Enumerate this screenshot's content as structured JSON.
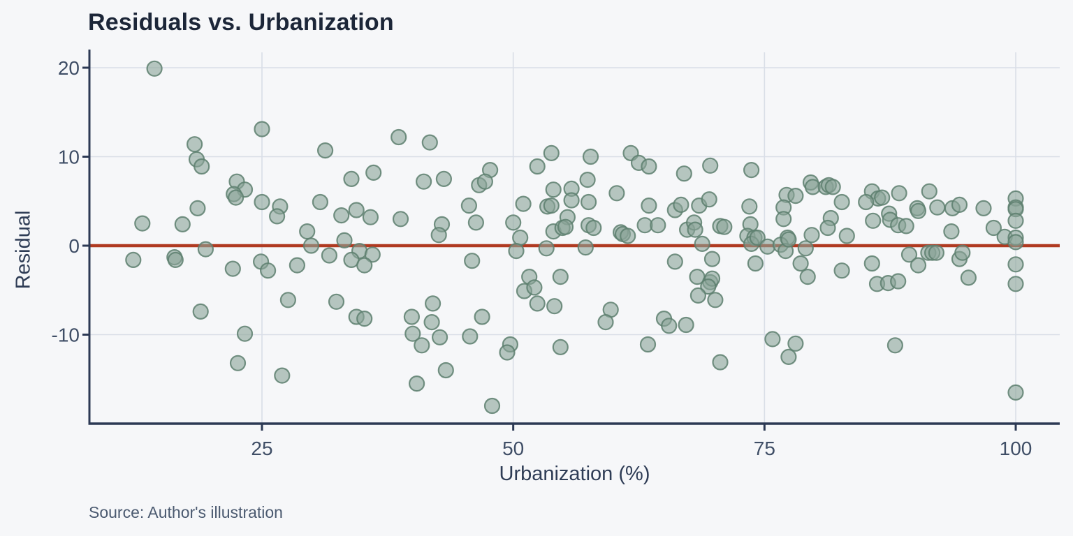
{
  "page": {
    "background": "#f6f7f9"
  },
  "header": {
    "title": "Residuals vs. Urbanization"
  },
  "footer": {
    "source": "Source: Author's illustration"
  },
  "colors": {
    "background": "#f6f7f9",
    "grid": "#d9dee7",
    "axis_line": "#2c3954",
    "tick_text": "#3f4e66",
    "title_text": "#1c2638",
    "axis_title_text": "#2e3c55",
    "source_text": "#4b5a70",
    "point_fill": "#8aa497",
    "point_stroke": "#5d7f6e",
    "zero_line": "#b03a21"
  },
  "chart_data": {
    "type": "scatter",
    "title": "Residuals vs. Urbanization",
    "xlabel": "Urbanization (%)",
    "ylabel": "Residual",
    "x_ticks": [
      25,
      50,
      75,
      100
    ],
    "y_ticks": [
      -10,
      0,
      10,
      20
    ],
    "xlim": [
      7.8,
      104.4
    ],
    "ylim": [
      -20,
      21.7
    ],
    "grid": true,
    "legend": false,
    "zero_line_y": 0,
    "points": [
      [
        14.3,
        19.9
      ],
      [
        18.3,
        11.4
      ],
      [
        18.5,
        9.7
      ],
      [
        19.0,
        8.9
      ],
      [
        22.5,
        7.2
      ],
      [
        23.3,
        6.3
      ],
      [
        22.2,
        5.8
      ],
      [
        22.4,
        5.4
      ],
      [
        18.6,
        4.2
      ],
      [
        13.1,
        2.5
      ],
      [
        17.1,
        2.4
      ],
      [
        19.4,
        -0.4
      ],
      [
        12.2,
        -1.6
      ],
      [
        16.3,
        -1.3
      ],
      [
        16.4,
        -1.6
      ],
      [
        22.1,
        -2.6
      ],
      [
        18.9,
        -7.4
      ],
      [
        23.3,
        -9.9
      ],
      [
        22.6,
        -13.2
      ],
      [
        25.0,
        13.1
      ],
      [
        38.6,
        12.2
      ],
      [
        31.3,
        10.7
      ],
      [
        36.1,
        8.2
      ],
      [
        33.9,
        7.5
      ],
      [
        25.0,
        4.9
      ],
      [
        30.8,
        4.9
      ],
      [
        26.8,
        4.4
      ],
      [
        26.5,
        3.3
      ],
      [
        34.4,
        4.0
      ],
      [
        32.9,
        3.4
      ],
      [
        35.8,
        3.2
      ],
      [
        38.8,
        3.0
      ],
      [
        29.5,
        1.6
      ],
      [
        33.2,
        0.6
      ],
      [
        29.9,
        0.0
      ],
      [
        34.7,
        -0.6
      ],
      [
        31.7,
        -1.1
      ],
      [
        36.0,
        -1.0
      ],
      [
        33.9,
        -1.6
      ],
      [
        24.9,
        -1.8
      ],
      [
        35.2,
        -2.2
      ],
      [
        25.6,
        -2.8
      ],
      [
        28.5,
        -2.2
      ],
      [
        27.6,
        -6.1
      ],
      [
        32.4,
        -6.3
      ],
      [
        34.4,
        -8.0
      ],
      [
        35.2,
        -8.2
      ],
      [
        39.9,
        -8.0
      ],
      [
        40.0,
        -9.9
      ],
      [
        27.0,
        -14.6
      ],
      [
        40.4,
        -15.5
      ],
      [
        41.7,
        11.6
      ],
      [
        53.8,
        10.4
      ],
      [
        47.7,
        8.5
      ],
      [
        52.4,
        8.9
      ],
      [
        41.1,
        7.2
      ],
      [
        43.1,
        7.5
      ],
      [
        46.6,
        6.8
      ],
      [
        47.2,
        7.2
      ],
      [
        54.0,
        6.3
      ],
      [
        55.8,
        6.4
      ],
      [
        45.6,
        4.5
      ],
      [
        51.0,
        4.7
      ],
      [
        53.4,
        4.4
      ],
      [
        53.8,
        4.5
      ],
      [
        55.8,
        5.1
      ],
      [
        42.9,
        2.4
      ],
      [
        46.3,
        2.6
      ],
      [
        50.0,
        2.6
      ],
      [
        55.4,
        3.2
      ],
      [
        54.0,
        1.6
      ],
      [
        54.9,
        2.0
      ],
      [
        55.2,
        2.1
      ],
      [
        42.6,
        1.2
      ],
      [
        50.7,
        0.9
      ],
      [
        50.3,
        -0.6
      ],
      [
        53.3,
        -0.3
      ],
      [
        45.9,
        -1.7
      ],
      [
        51.6,
        -3.5
      ],
      [
        54.7,
        -3.5
      ],
      [
        51.1,
        -5.1
      ],
      [
        52.1,
        -4.7
      ],
      [
        52.4,
        -6.5
      ],
      [
        54.1,
        -6.8
      ],
      [
        42.0,
        -6.5
      ],
      [
        46.9,
        -8.0
      ],
      [
        41.9,
        -8.6
      ],
      [
        42.7,
        -10.3
      ],
      [
        45.7,
        -10.2
      ],
      [
        40.9,
        -11.2
      ],
      [
        49.7,
        -11.1
      ],
      [
        54.7,
        -11.4
      ],
      [
        49.4,
        -12.0
      ],
      [
        43.3,
        -14.0
      ],
      [
        47.9,
        -18.0
      ],
      [
        57.7,
        10.0
      ],
      [
        61.7,
        10.4
      ],
      [
        62.5,
        9.3
      ],
      [
        63.5,
        8.9
      ],
      [
        67.0,
        8.1
      ],
      [
        69.6,
        9.0
      ],
      [
        57.4,
        7.4
      ],
      [
        60.3,
        5.9
      ],
      [
        57.5,
        4.9
      ],
      [
        63.5,
        4.5
      ],
      [
        66.1,
        4.0
      ],
      [
        66.7,
        4.6
      ],
      [
        68.5,
        4.5
      ],
      [
        69.5,
        5.2
      ],
      [
        57.5,
        2.3
      ],
      [
        58.0,
        2.0
      ],
      [
        60.7,
        1.5
      ],
      [
        60.9,
        1.3
      ],
      [
        61.4,
        1.1
      ],
      [
        63.1,
        2.3
      ],
      [
        64.4,
        2.3
      ],
      [
        67.3,
        1.8
      ],
      [
        68.0,
        2.6
      ],
      [
        68.1,
        1.8
      ],
      [
        70.6,
        2.2
      ],
      [
        71.0,
        2.1
      ],
      [
        57.2,
        -0.2
      ],
      [
        68.8,
        0.2
      ],
      [
        66.1,
        -1.8
      ],
      [
        69.8,
        -1.5
      ],
      [
        68.3,
        -3.5
      ],
      [
        69.6,
        -4.1
      ],
      [
        69.8,
        -3.7
      ],
      [
        69.4,
        -4.6
      ],
      [
        68.4,
        -5.6
      ],
      [
        70.1,
        -6.1
      ],
      [
        59.7,
        -7.2
      ],
      [
        59.2,
        -8.6
      ],
      [
        65.0,
        -8.2
      ],
      [
        65.5,
        -9.0
      ],
      [
        67.2,
        -8.9
      ],
      [
        63.4,
        -11.1
      ],
      [
        70.6,
        -13.1
      ],
      [
        73.7,
        8.5
      ],
      [
        79.6,
        7.1
      ],
      [
        79.8,
        6.6
      ],
      [
        81.1,
        6.6
      ],
      [
        81.4,
        6.8
      ],
      [
        81.8,
        6.6
      ],
      [
        77.2,
        5.7
      ],
      [
        78.1,
        5.6
      ],
      [
        82.7,
        4.9
      ],
      [
        73.5,
        4.4
      ],
      [
        76.9,
        4.3
      ],
      [
        85.7,
        6.1
      ],
      [
        86.3,
        5.3
      ],
      [
        86.7,
        5.4
      ],
      [
        88.4,
        5.9
      ],
      [
        85.1,
        4.9
      ],
      [
        76.9,
        3.0
      ],
      [
        73.6,
        2.4
      ],
      [
        87.4,
        3.6
      ],
      [
        87.5,
        2.9
      ],
      [
        85.8,
        2.8
      ],
      [
        88.3,
        2.3
      ],
      [
        81.6,
        3.1
      ],
      [
        81.3,
        2.0
      ],
      [
        73.3,
        1.1
      ],
      [
        74.0,
        0.9
      ],
      [
        77.3,
        0.9
      ],
      [
        79.7,
        1.2
      ],
      [
        83.2,
        1.1
      ],
      [
        73.7,
        0.2
      ],
      [
        74.3,
        0.9
      ],
      [
        75.3,
        -0.1
      ],
      [
        76.6,
        0.1
      ],
      [
        77.1,
        -0.6
      ],
      [
        77.4,
        0.7
      ],
      [
        79.1,
        -0.3
      ],
      [
        74.1,
        -2.0
      ],
      [
        78.6,
        -2.0
      ],
      [
        79.3,
        -3.5
      ],
      [
        82.7,
        -2.8
      ],
      [
        85.7,
        -2.0
      ],
      [
        86.2,
        -4.3
      ],
      [
        87.3,
        -4.2
      ],
      [
        88.3,
        -4.0
      ],
      [
        75.8,
        -10.5
      ],
      [
        78.1,
        -11.0
      ],
      [
        77.4,
        -12.5
      ],
      [
        88.0,
        -11.2
      ],
      [
        91.4,
        6.1
      ],
      [
        90.2,
        4.2
      ],
      [
        90.3,
        3.9
      ],
      [
        92.2,
        4.3
      ],
      [
        93.7,
        4.2
      ],
      [
        94.4,
        4.6
      ],
      [
        96.8,
        4.2
      ],
      [
        89.1,
        2.2
      ],
      [
        93.6,
        1.6
      ],
      [
        97.8,
        2.0
      ],
      [
        98.9,
        1.0
      ],
      [
        100,
        5.3
      ],
      [
        100,
        4.3
      ],
      [
        100,
        4.1
      ],
      [
        100,
        2.8
      ],
      [
        100,
        0.9
      ],
      [
        100,
        0.4
      ],
      [
        91.3,
        -0.8
      ],
      [
        91.7,
        -0.8
      ],
      [
        92.1,
        -0.8
      ],
      [
        89.4,
        -1.0
      ],
      [
        90.3,
        -2.2
      ],
      [
        94.4,
        -1.5
      ],
      [
        94.7,
        -0.8
      ],
      [
        95.3,
        -3.6
      ],
      [
        100,
        -2.1
      ],
      [
        100,
        -4.3
      ],
      [
        100,
        -16.5
      ]
    ]
  }
}
